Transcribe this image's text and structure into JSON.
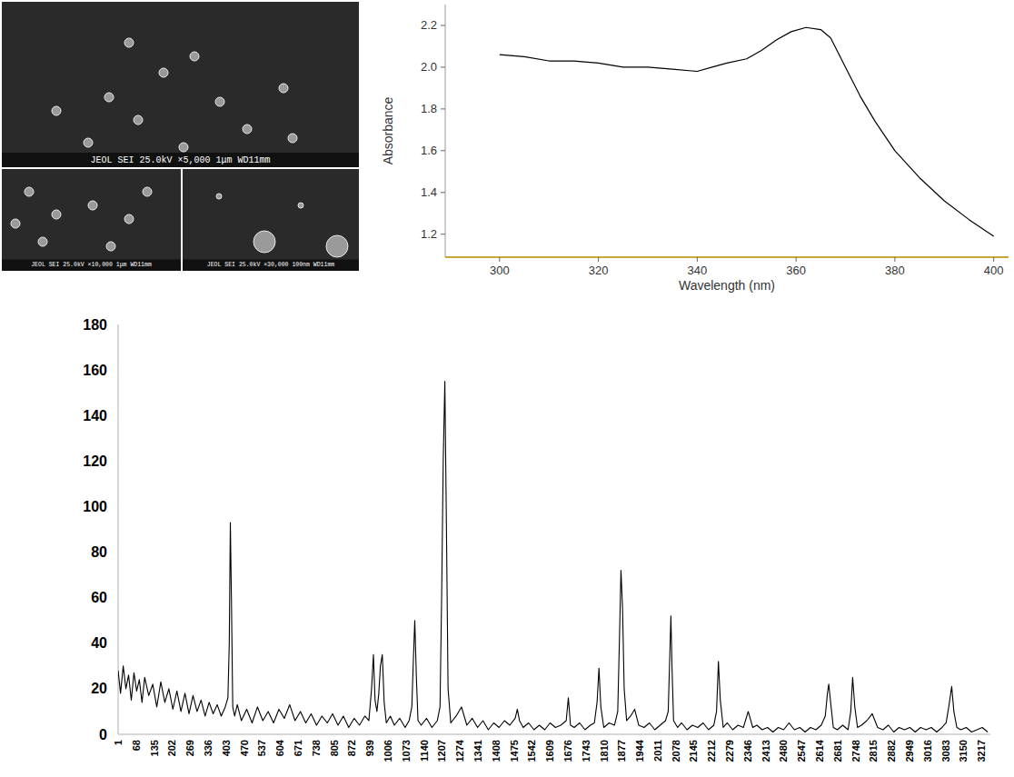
{
  "sem_images": [
    {
      "caption": "JEOL SEI 25.0kV ×5,000 1μm WD11mm"
    },
    {
      "caption": "JEOL SEI 25.0kV ×10,000 1μm WD11mm"
    },
    {
      "caption": "JEOL SEI 25.0kV ×30,000 100nm WD11mm"
    }
  ],
  "chart_data": [
    {
      "type": "line",
      "x_label": "Wavelength (nm)",
      "y_label": "Absorbance",
      "x": [
        300,
        305,
        310,
        315,
        320,
        325,
        330,
        335,
        340,
        343,
        346,
        350,
        353,
        356,
        359,
        362,
        365,
        367,
        370,
        373,
        376,
        380,
        385,
        390,
        395,
        400
      ],
      "values": [
        2.06,
        2.05,
        2.03,
        2.03,
        2.02,
        2.0,
        2.0,
        1.99,
        1.98,
        2.0,
        2.02,
        2.04,
        2.08,
        2.13,
        2.17,
        2.19,
        2.18,
        2.14,
        2.0,
        1.86,
        1.74,
        1.6,
        1.47,
        1.36,
        1.27,
        1.19
      ],
      "color": "#000000",
      "xlim": [
        289,
        403
      ],
      "ylim": [
        1.09,
        2.3
      ],
      "xticks": [
        300,
        320,
        340,
        360,
        380,
        400
      ],
      "yticks": [
        1.2,
        1.4,
        1.6,
        1.8,
        {
          "value": 2,
          "label": "2.0"
        },
        2.2
      ],
      "grid": false
    },
    {
      "type": "line",
      "x": [
        1,
        10,
        20,
        30,
        40,
        50,
        60,
        70,
        80,
        90,
        100,
        115,
        130,
        145,
        160,
        175,
        190,
        205,
        220,
        235,
        250,
        265,
        280,
        295,
        310,
        325,
        340,
        355,
        370,
        385,
        400,
        410,
        415,
        419,
        423,
        428,
        435,
        445,
        460,
        480,
        500,
        520,
        540,
        560,
        580,
        600,
        620,
        640,
        660,
        680,
        700,
        720,
        740,
        760,
        780,
        800,
        820,
        840,
        860,
        880,
        900,
        920,
        935,
        945,
        952,
        958,
        965,
        972,
        978,
        985,
        992,
        1000,
        1015,
        1030,
        1050,
        1070,
        1085,
        1095,
        1100,
        1106,
        1112,
        1118,
        1130,
        1150,
        1170,
        1190,
        1200,
        1206,
        1212,
        1218,
        1224,
        1230,
        1240,
        1260,
        1280,
        1300,
        1320,
        1340,
        1360,
        1380,
        1400,
        1420,
        1440,
        1460,
        1480,
        1488,
        1496,
        1510,
        1530,
        1550,
        1570,
        1590,
        1610,
        1630,
        1650,
        1670,
        1678,
        1686,
        1700,
        1720,
        1740,
        1760,
        1775,
        1785,
        1792,
        1799,
        1810,
        1830,
        1850,
        1862,
        1868,
        1874,
        1880,
        1886,
        1895,
        1910,
        1925,
        1940,
        1960,
        1980,
        2000,
        2020,
        2040,
        2050,
        2056,
        2060,
        2064,
        2070,
        2085,
        2100,
        2120,
        2140,
        2160,
        2180,
        2200,
        2220,
        2230,
        2237,
        2244,
        2255,
        2270,
        2290,
        2310,
        2330,
        2348,
        2365,
        2380,
        2400,
        2420,
        2440,
        2460,
        2480,
        2500,
        2520,
        2540,
        2560,
        2580,
        2600,
        2620,
        2635,
        2643,
        2648,
        2655,
        2665,
        2680,
        2700,
        2720,
        2730,
        2737,
        2745,
        2755,
        2770,
        2790,
        2810,
        2830,
        2850,
        2870,
        2890,
        2910,
        2930,
        2950,
        2970,
        2990,
        3010,
        3030,
        3050,
        3070,
        3085,
        3095,
        3106,
        3114,
        3125,
        3140,
        3160,
        3180,
        3200,
        3220,
        3240
      ],
      "values": [
        28,
        18,
        30,
        20,
        26,
        15,
        27,
        19,
        24,
        14,
        25,
        17,
        22,
        12,
        23,
        14,
        20,
        11,
        19,
        10,
        18,
        9,
        17,
        10,
        15,
        8,
        14,
        9,
        13,
        8,
        12,
        16,
        40,
        93,
        60,
        12,
        8,
        13,
        6,
        11,
        5,
        12,
        6,
        10,
        5,
        11,
        7,
        13,
        6,
        10,
        5,
        9,
        4,
        8,
        5,
        9,
        4,
        8,
        3,
        7,
        4,
        8,
        6,
        20,
        35,
        15,
        10,
        18,
        30,
        35,
        14,
        5,
        8,
        4,
        7,
        3,
        6,
        12,
        30,
        50,
        25,
        6,
        4,
        7,
        3,
        6,
        12,
        60,
        120,
        155,
        90,
        20,
        5,
        8,
        12,
        4,
        7,
        3,
        6,
        2,
        5,
        3,
        6,
        4,
        7,
        11,
        6,
        3,
        5,
        2,
        4,
        2,
        5,
        3,
        4,
        6,
        16,
        4,
        3,
        5,
        2,
        4,
        5,
        14,
        29,
        12,
        3,
        5,
        4,
        10,
        40,
        72,
        55,
        20,
        6,
        8,
        11,
        4,
        3,
        5,
        2,
        4,
        6,
        10,
        35,
        52,
        30,
        6,
        3,
        5,
        2,
        4,
        3,
        5,
        2,
        4,
        10,
        32,
        15,
        3,
        5,
        2,
        4,
        3,
        10,
        3,
        4,
        2,
        3,
        1,
        3,
        2,
        5,
        2,
        3,
        1,
        3,
        2,
        4,
        8,
        18,
        22,
        14,
        3,
        2,
        4,
        2,
        10,
        25,
        12,
        3,
        4,
        6,
        9,
        3,
        2,
        4,
        1,
        3,
        2,
        3,
        1,
        3,
        2,
        3,
        1,
        3,
        5,
        12,
        21,
        10,
        3,
        2,
        3,
        1,
        2,
        3,
        1
      ],
      "color": "#000000",
      "xlim": [
        1,
        3250
      ],
      "ylim": [
        0,
        180
      ],
      "xticks": [
        1,
        68,
        135,
        202,
        269,
        336,
        403,
        470,
        537,
        604,
        671,
        738,
        805,
        872,
        939,
        1006,
        1073,
        1140,
        1207,
        1274,
        1341,
        1408,
        1475,
        1542,
        1609,
        1676,
        1743,
        1810,
        1877,
        1944,
        2011,
        2078,
        2145,
        2212,
        2279,
        2346,
        2413,
        2480,
        2547,
        2614,
        2681,
        2748,
        2815,
        2882,
        2949,
        3016,
        3083,
        3150,
        3217
      ],
      "yticks": [
        0,
        20,
        40,
        60,
        80,
        100,
        120,
        140,
        160,
        180
      ],
      "grid": false
    }
  ]
}
